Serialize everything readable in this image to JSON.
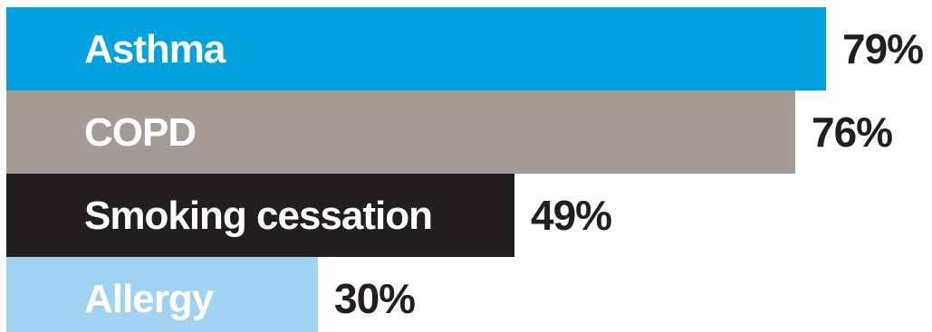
{
  "chart_data": {
    "type": "bar",
    "orientation": "horizontal",
    "categories": [
      "Asthma",
      "COPD",
      "Smoking cessation",
      "Allergy"
    ],
    "values": [
      79,
      76,
      49,
      30
    ],
    "value_labels": [
      "79%",
      "76%",
      "49%",
      "30%"
    ],
    "colors": [
      "#00a3e0",
      "#a69a94",
      "#231f20",
      "#9fd3f1"
    ],
    "xlim": [
      0,
      89.2
    ],
    "grid": false,
    "legend": "none"
  }
}
